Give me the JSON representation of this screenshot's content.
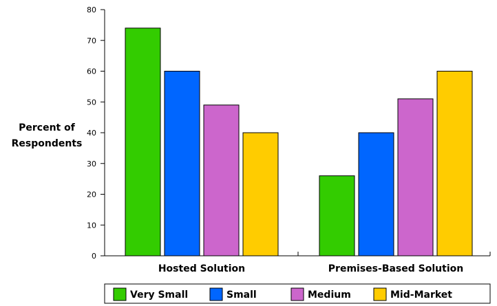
{
  "chart_data": {
    "type": "bar",
    "title": "",
    "xlabel": "",
    "ylabel": "Percent of Respondents",
    "ylabel_lines": [
      "Percent of",
      "Respondents"
    ],
    "ylim": [
      0,
      80
    ],
    "yticks": [
      "0",
      "10",
      "20",
      "30",
      "40",
      "50",
      "60",
      "70",
      "80"
    ],
    "categories": [
      "Hosted Solution",
      "Premises-Based Solution"
    ],
    "series": [
      {
        "name": "Very Small",
        "values": [
          74,
          26
        ],
        "color": "#33cc00"
      },
      {
        "name": "Small",
        "values": [
          60,
          40
        ],
        "color": "#0066ff"
      },
      {
        "name": "Medium",
        "values": [
          49,
          51
        ],
        "color": "#cc66cc"
      },
      {
        "name": "Mid-Market",
        "values": [
          40,
          60
        ],
        "color": "#ffcc00"
      }
    ],
    "grid": false,
    "legend_position": "bottom"
  }
}
